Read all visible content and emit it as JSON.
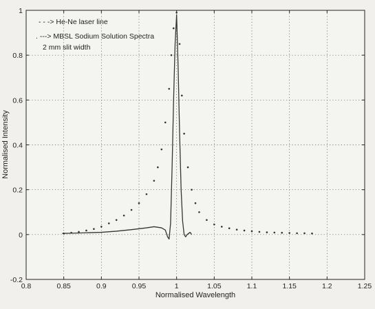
{
  "chart_data": {
    "type": "line",
    "xlabel": "Normalised Wavelength",
    "ylabel": "Normalised Intensity",
    "xlim": [
      0.8,
      1.25
    ],
    "ylim": [
      -0.2,
      1.0
    ],
    "xticks": [
      "0.8",
      "0.85",
      "0.9",
      "0.95",
      "1",
      "1.05",
      "1.1",
      "1.15",
      "1.2",
      "1.25"
    ],
    "yticks": [
      "-0.2",
      "0",
      "0.2",
      "0.4",
      "0.6",
      "0.8",
      "1"
    ],
    "grid": true,
    "legend_position": "top-left",
    "legend_entries": [
      "- - -> He-Ne laser line",
      ". ---> MBSL Sodium Solution Spectra",
      "2 mm slit width"
    ],
    "series": [
      {
        "style": "solid-line",
        "color": "#333333",
        "x": [
          0.848,
          0.86,
          0.88,
          0.9,
          0.92,
          0.94,
          0.96,
          0.97,
          0.98,
          0.985,
          0.988,
          0.99,
          0.992,
          0.994,
          0.996,
          0.998,
          1.0,
          1.002,
          1.004,
          1.006,
          1.008,
          1.01,
          1.012,
          1.014,
          1.016,
          1.018,
          1.02
        ],
        "y": [
          0.005,
          0.006,
          0.008,
          0.01,
          0.015,
          0.022,
          0.03,
          0.035,
          0.03,
          0.02,
          -0.01,
          -0.02,
          0.05,
          0.3,
          0.6,
          0.85,
          0.98,
          0.75,
          0.45,
          0.2,
          0.06,
          0.0,
          -0.01,
          0.0,
          0.005,
          0.01,
          0.0
        ]
      },
      {
        "style": "dots",
        "color": "#333333",
        "x": [
          0.85,
          0.86,
          0.87,
          0.88,
          0.89,
          0.9,
          0.91,
          0.92,
          0.93,
          0.94,
          0.95,
          0.96,
          0.97,
          0.975,
          0.98,
          0.985,
          0.99,
          0.993,
          0.996,
          1.0,
          1.004,
          1.007,
          1.01,
          1.015,
          1.02,
          1.025,
          1.03,
          1.04,
          1.05,
          1.06,
          1.07,
          1.08,
          1.09,
          1.1,
          1.11,
          1.12,
          1.13,
          1.14,
          1.15,
          1.16,
          1.17,
          1.18
        ],
        "y": [
          0.005,
          0.008,
          0.012,
          0.018,
          0.025,
          0.035,
          0.05,
          0.065,
          0.085,
          0.11,
          0.14,
          0.18,
          0.24,
          0.3,
          0.38,
          0.5,
          0.65,
          0.8,
          0.92,
          0.99,
          0.85,
          0.62,
          0.45,
          0.3,
          0.2,
          0.14,
          0.1,
          0.065,
          0.045,
          0.035,
          0.028,
          0.022,
          0.018,
          0.015,
          0.012,
          0.01,
          0.009,
          0.008,
          0.007,
          0.006,
          0.006,
          0.005
        ]
      }
    ]
  }
}
